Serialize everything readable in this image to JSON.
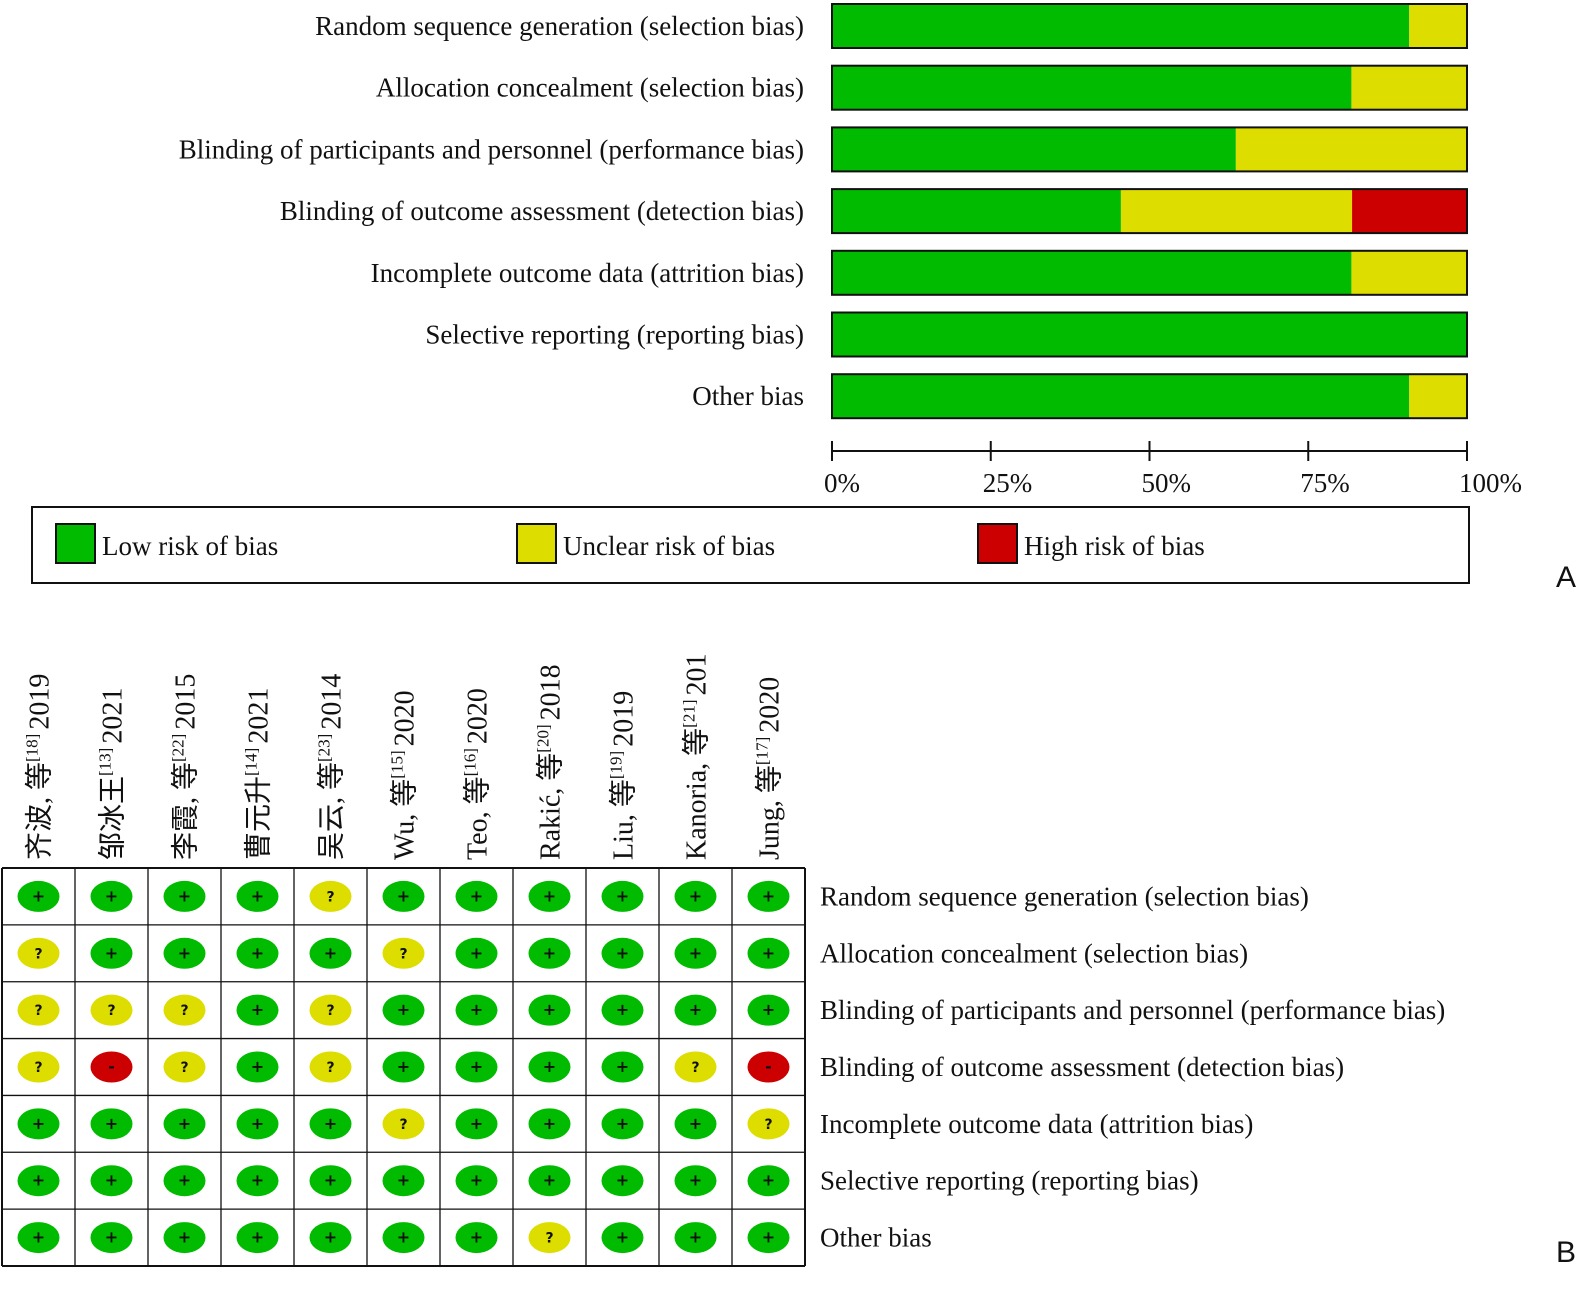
{
  "chart_data": [
    {
      "type": "bar",
      "panel_label": "A",
      "categories": [
        "Random sequence generation (selection bias)",
        "Allocation concealment (selection bias)",
        "Blinding of participants and personnel (performance bias)",
        "Blinding of outcome assessment (detection bias)",
        "Incomplete outcome data (attrition bias)",
        "Selective reporting (reporting bias)",
        "Other bias"
      ],
      "series": [
        {
          "name": "Low risk of bias",
          "color": "#00bb00",
          "values": [
            90.9,
            81.8,
            63.6,
            45.5,
            81.8,
            100,
            90.9
          ]
        },
        {
          "name": "Unclear risk of bias",
          "color": "#dddd00",
          "values": [
            9.1,
            18.2,
            36.4,
            36.4,
            18.2,
            0,
            9.1
          ]
        },
        {
          "name": "High risk of bias",
          "color": "#cc0000",
          "values": [
            0,
            0,
            0,
            18.2,
            0,
            0,
            0
          ]
        }
      ],
      "x_ticks": [
        "0%",
        "25%",
        "50%",
        "75%",
        "100%"
      ],
      "xlim": [
        0,
        100
      ],
      "legend": {
        "placement": "bottom",
        "items": [
          {
            "label": "Low risk of bias",
            "color": "#00bb00"
          },
          {
            "label": "Unclear risk of bias",
            "color": "#dddd00"
          },
          {
            "label": "High risk of bias",
            "color": "#cc0000"
          }
        ]
      }
    },
    {
      "type": "table",
      "panel_label": "B",
      "studies": [
        {
          "name": "齐波, 等",
          "ref": "[18]",
          "year": "2019"
        },
        {
          "name": "邹冰王",
          "ref": "[13]",
          "year": "2021"
        },
        {
          "name": "李霞, 等",
          "ref": "[22]",
          "year": "2015"
        },
        {
          "name": "曹元升",
          "ref": "[14]",
          "year": "2021"
        },
        {
          "name": "吴云, 等",
          "ref": "[23]",
          "year": "2014"
        },
        {
          "name": "Wu, 等",
          "ref": "[15]",
          "year": "2020"
        },
        {
          "name": "Teo, 等",
          "ref": "[16]",
          "year": "2020"
        },
        {
          "name": "Rakić, 等",
          "ref": "[20]",
          "year": "2018"
        },
        {
          "name": "Liu, 等",
          "ref": "[19]",
          "year": "2019"
        },
        {
          "name": "Kanoria, 等",
          "ref": "[21]",
          "year": "201"
        },
        {
          "name": "Jung, 等",
          "ref": "[17]",
          "year": "2020"
        }
      ],
      "domains": [
        "Random sequence generation (selection bias)",
        "Allocation concealment (selection bias)",
        "Blinding of participants and personnel (performance bias)",
        "Blinding of outcome assessment (detection bias)",
        "Incomplete outcome data (attrition bias)",
        "Selective reporting (reporting bias)",
        "Other bias"
      ],
      "judgements": [
        [
          "+",
          "+",
          "+",
          "+",
          "?",
          "+",
          "+",
          "+",
          "+",
          "+",
          "+"
        ],
        [
          "?",
          "+",
          "+",
          "+",
          "+",
          "?",
          "+",
          "+",
          "+",
          "+",
          "+"
        ],
        [
          "?",
          "?",
          "?",
          "+",
          "?",
          "+",
          "+",
          "+",
          "+",
          "+",
          "+"
        ],
        [
          "?",
          "-",
          "?",
          "+",
          "?",
          "+",
          "+",
          "+",
          "+",
          "?",
          "-"
        ],
        [
          "+",
          "+",
          "+",
          "+",
          "+",
          "?",
          "+",
          "+",
          "+",
          "+",
          "?"
        ],
        [
          "+",
          "+",
          "+",
          "+",
          "+",
          "+",
          "+",
          "+",
          "+",
          "+",
          "+"
        ],
        [
          "+",
          "+",
          "+",
          "+",
          "+",
          "+",
          "+",
          "?",
          "+",
          "+",
          "+"
        ]
      ],
      "symbol_colors": {
        "+": "#00bb00",
        "?": "#dddd00",
        "-": "#cc0000"
      }
    }
  ]
}
